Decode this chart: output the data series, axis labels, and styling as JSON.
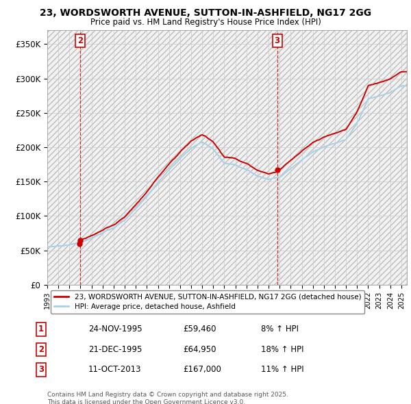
{
  "title": "23, WORDSWORTH AVENUE, SUTTON-IN-ASHFIELD, NG17 2GG",
  "subtitle": "Price paid vs. HM Land Registry's House Price Index (HPI)",
  "legend_line1": "23, WORDSWORTH AVENUE, SUTTON-IN-ASHFIELD, NG17 2GG (detached house)",
  "legend_line2": "HPI: Average price, detached house, Ashfield",
  "transactions": [
    {
      "label": "1",
      "date_x": 1995.896,
      "price": 59460,
      "pct": "8%",
      "date_str": "24-NOV-1995"
    },
    {
      "label": "2",
      "date_x": 1995.975,
      "price": 64950,
      "pct": "18%",
      "date_str": "21-DEC-1995"
    },
    {
      "label": "3",
      "date_x": 2013.78,
      "price": 167000,
      "pct": "11%",
      "date_str": "11-OCT-2013"
    }
  ],
  "hpi_color": "#a8d0e8",
  "price_color": "#cc0000",
  "vline_color": "#cc0000",
  "footnote": "Contains HM Land Registry data © Crown copyright and database right 2025.\nThis data is licensed under the Open Government Licence v3.0.",
  "ylim": [
    0,
    370000
  ],
  "xlim_start": 1993.0,
  "xlim_end": 2025.5,
  "table_rows": [
    [
      "1",
      "24-NOV-1995",
      "£59,460",
      "8% ↑ HPI"
    ],
    [
      "2",
      "21-DEC-1995",
      "£64,950",
      "18% ↑ HPI"
    ],
    [
      "3",
      "11-OCT-2013",
      "£167,000",
      "11% ↑ HPI"
    ]
  ]
}
